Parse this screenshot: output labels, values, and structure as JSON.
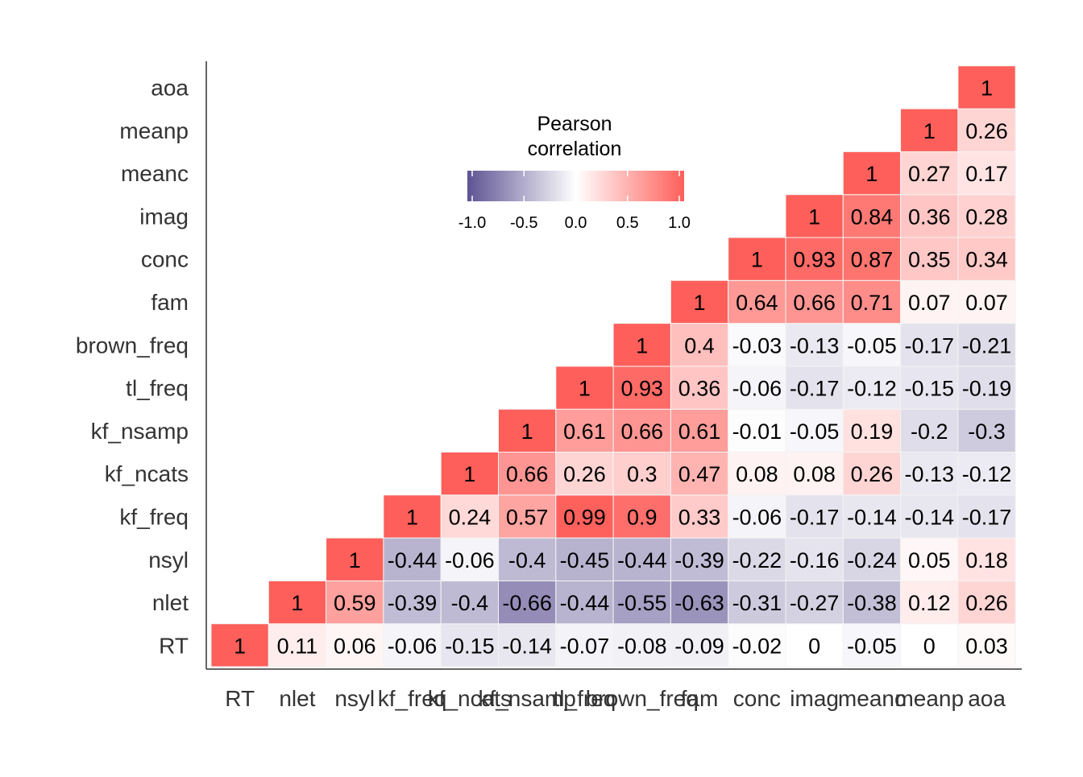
{
  "chart_data": {
    "type": "heatmap",
    "title": "",
    "xlabel": "",
    "ylabel": "",
    "variables": [
      "RT",
      "nlet",
      "nsyl",
      "kf_freq",
      "kf_ncats",
      "kf_nsamp",
      "tl_freq",
      "brown_freq",
      "fam",
      "conc",
      "imag",
      "meanc",
      "meanp",
      "aoa"
    ],
    "matrix": [
      [
        1,
        0.11,
        0.06,
        -0.06,
        -0.15,
        -0.14,
        -0.07,
        -0.08,
        -0.09,
        -0.02,
        0,
        -0.05,
        0,
        0.03
      ],
      [
        0.11,
        1,
        0.59,
        -0.39,
        -0.4,
        -0.66,
        -0.44,
        -0.55,
        -0.63,
        -0.31,
        -0.27,
        -0.38,
        0.12,
        0.26
      ],
      [
        0.06,
        0.59,
        1,
        -0.44,
        -0.06,
        -0.4,
        -0.45,
        -0.44,
        -0.39,
        -0.22,
        -0.16,
        -0.24,
        0.05,
        0.18
      ],
      [
        -0.06,
        -0.39,
        -0.44,
        1,
        0.24,
        0.57,
        0.99,
        0.9,
        0.33,
        -0.06,
        -0.17,
        -0.14,
        -0.14,
        -0.17
      ],
      [
        -0.15,
        -0.4,
        -0.06,
        0.24,
        1,
        0.66,
        0.26,
        0.3,
        0.47,
        0.08,
        0.08,
        0.26,
        -0.13,
        -0.12
      ],
      [
        -0.14,
        -0.66,
        -0.4,
        0.57,
        0.66,
        1,
        0.61,
        0.66,
        0.61,
        -0.01,
        -0.05,
        0.19,
        -0.2,
        -0.3
      ],
      [
        -0.07,
        -0.44,
        -0.45,
        0.99,
        0.26,
        0.61,
        1,
        0.93,
        0.36,
        -0.06,
        -0.17,
        -0.12,
        -0.15,
        -0.19
      ],
      [
        -0.08,
        -0.55,
        -0.44,
        0.9,
        0.3,
        0.66,
        0.93,
        1,
        0.4,
        -0.03,
        -0.13,
        -0.05,
        -0.17,
        -0.21
      ],
      [
        -0.09,
        -0.63,
        -0.39,
        0.33,
        0.47,
        0.61,
        0.36,
        0.4,
        1,
        0.64,
        0.66,
        0.71,
        0.07,
        0.07
      ],
      [
        -0.02,
        -0.31,
        -0.22,
        -0.06,
        0.08,
        -0.01,
        -0.06,
        -0.03,
        0.64,
        1,
        0.93,
        0.87,
        0.35,
        0.34
      ],
      [
        0,
        -0.27,
        -0.16,
        -0.17,
        0.08,
        -0.05,
        -0.17,
        -0.13,
        0.66,
        0.93,
        1,
        0.84,
        0.36,
        0.28
      ],
      [
        -0.05,
        -0.38,
        -0.24,
        -0.14,
        0.26,
        0.19,
        -0.12,
        -0.05,
        0.71,
        0.87,
        0.84,
        1,
        0.27,
        0.17
      ],
      [
        0,
        0.12,
        0.05,
        -0.14,
        -0.13,
        -0.2,
        -0.15,
        -0.17,
        0.07,
        0.35,
        0.36,
        0.27,
        1,
        0.26
      ],
      [
        0.03,
        0.26,
        0.18,
        -0.17,
        -0.12,
        -0.3,
        -0.19,
        -0.21,
        0.07,
        0.34,
        0.28,
        0.17,
        0.26,
        1
      ]
    ],
    "display": "lower-triangle",
    "legend": {
      "title": "Pearson\ncorrelation",
      "ticks": [
        "-1.0",
        "-0.5",
        "0.0",
        "0.5",
        "1.0"
      ],
      "range": [
        -1,
        1
      ],
      "placement": "top-center"
    },
    "colors": {
      "low": "#5e5393",
      "mid": "#ffffff",
      "high": "#fe5f5a",
      "grid": "#f3f3f3",
      "axis": "#333333"
    }
  }
}
